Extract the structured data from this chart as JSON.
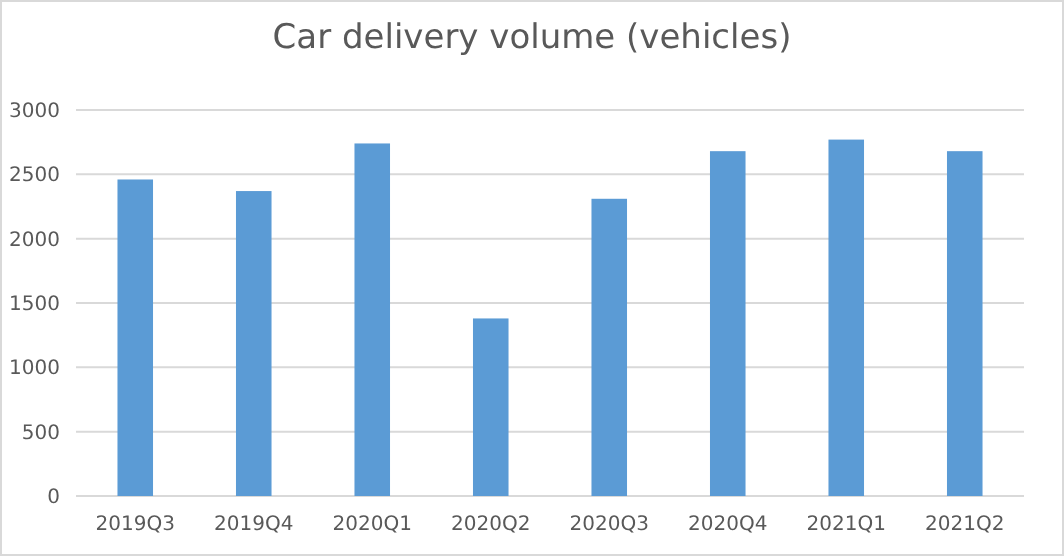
{
  "chart_data": {
    "type": "bar",
    "title": "Car delivery volume (vehicles)",
    "categories": [
      "2019Q3",
      "2019Q4",
      "2020Q1",
      "2020Q2",
      "2020Q3",
      "2020Q4",
      "2021Q1",
      "2021Q2"
    ],
    "values": [
      2460,
      2370,
      2740,
      1380,
      2310,
      2680,
      2770,
      2680
    ],
    "color": "#5b9bd5",
    "ylim": [
      0,
      3000
    ],
    "yticks": [
      0,
      500,
      1000,
      1500,
      2000,
      2500,
      3000
    ],
    "grid": "y"
  }
}
